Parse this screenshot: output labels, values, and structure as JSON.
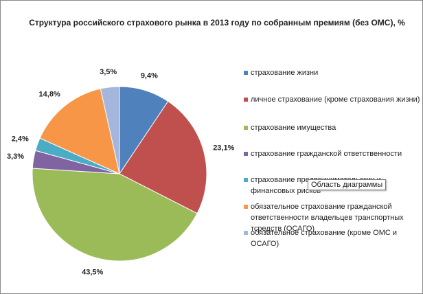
{
  "chart_data": {
    "type": "pie",
    "title": "Структура  российского страхового рынка в 2013 году по собранным премиям (без ОМС), %",
    "categories": [
      "страхование жизни",
      "личное страхование (кроме страхования жизни)",
      "страхование имущества",
      "страхование гражданской ответственности",
      "страхование предпринимательских и финансовых рисков",
      "обязательное страхование гражданской ответственности владельцев транспортных тсредств (ОСАГО)",
      "обязательное страхование (кроме ОМС и ОСАГО)"
    ],
    "values": [
      9.4,
      23.1,
      43.5,
      3.3,
      2.4,
      14.8,
      3.5
    ],
    "value_labels": [
      "9,4%",
      "23,1%",
      "43,5%",
      "3,3%",
      "2,4%",
      "14,8%",
      "3,5%"
    ],
    "colors": [
      "#4f81bd",
      "#c0504d",
      "#9bbb59",
      "#8064a2",
      "#4bacc6",
      "#f79646",
      "#a5b6dd"
    ],
    "legend": "right"
  },
  "tooltip": "Область диаграммы"
}
